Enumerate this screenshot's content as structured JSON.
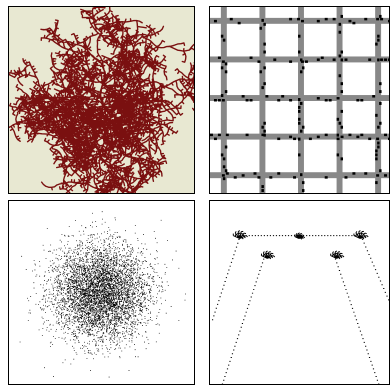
{
  "panels": [
    {
      "id": "dla-cluster",
      "description_color": "#7a1010",
      "background_color": "#e8e8d2"
    },
    {
      "id": "lattice-grid",
      "line_color": "#888888",
      "dot_color": "#000000"
    },
    {
      "id": "gaussian-scatter",
      "dot_color": "#000000"
    },
    {
      "id": "fractal-arch",
      "dot_color": "#000000"
    }
  ],
  "colors": {
    "panel_border": "#000000",
    "dendrite": "#7a1010",
    "sand": "#e8e8d2",
    "grid_line": "#888888",
    "ink": "#000000"
  }
}
